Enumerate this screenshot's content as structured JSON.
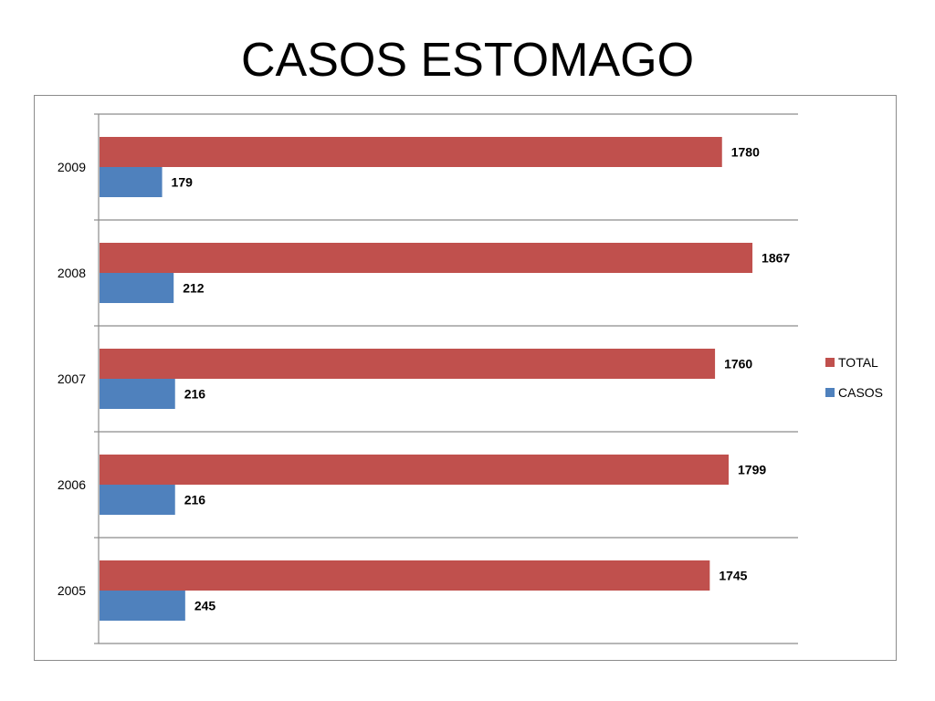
{
  "chart_data": {
    "type": "bar",
    "orientation": "horizontal",
    "title": "CASOS ESTOMAGO",
    "categories": [
      "2009",
      "2008",
      "2007",
      "2006",
      "2005"
    ],
    "series": [
      {
        "name": "TOTAL",
        "values": [
          1780,
          1867,
          1760,
          1799,
          1745
        ],
        "color": "#c0504d"
      },
      {
        "name": "CASOS",
        "values": [
          179,
          212,
          216,
          216,
          245
        ],
        "color": "#4f81bd"
      }
    ],
    "xlim": [
      0,
      2000
    ],
    "grid": "horizontal category separators",
    "legend_position": "right",
    "data_labels": true
  }
}
